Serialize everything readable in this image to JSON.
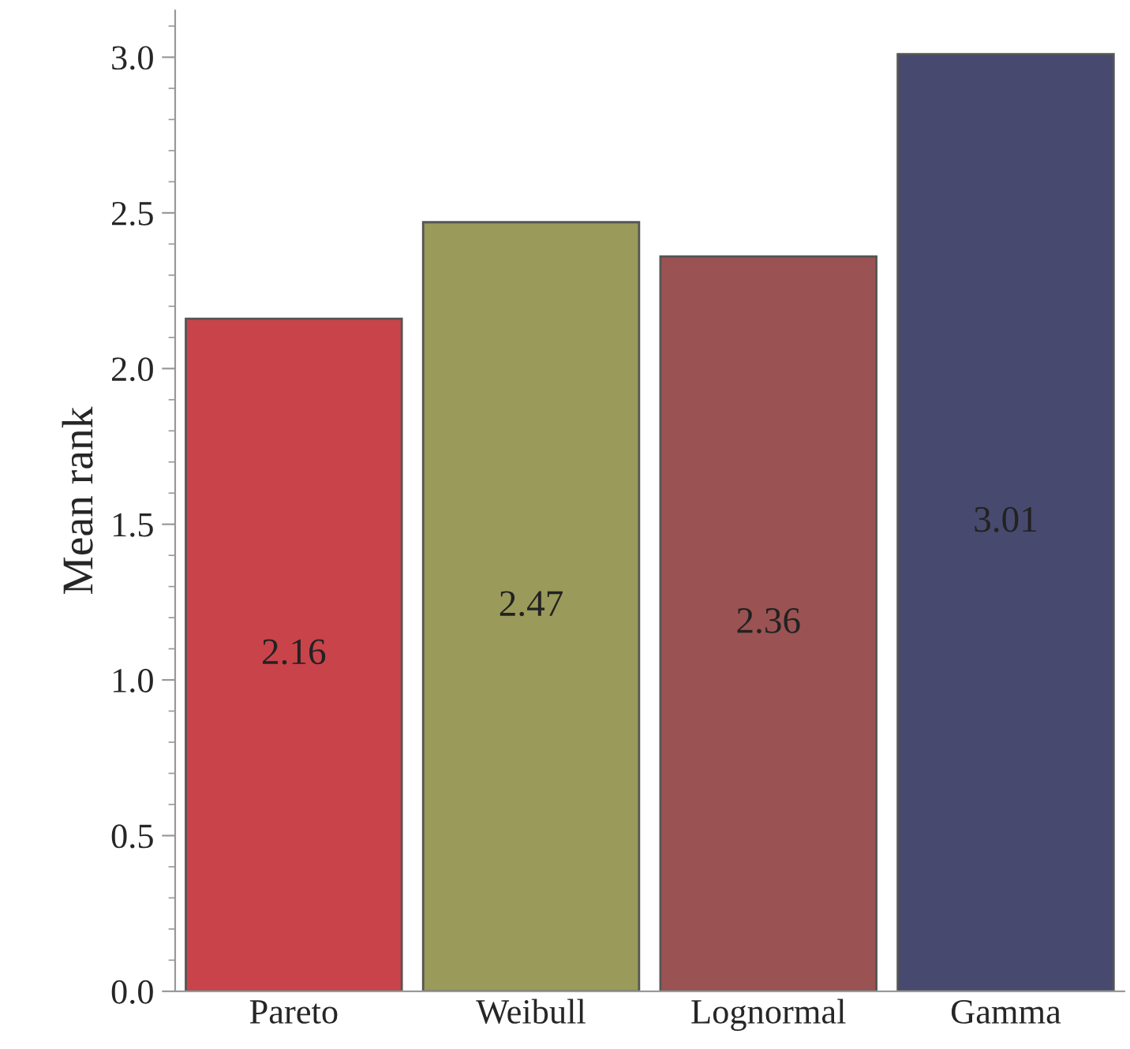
{
  "chart_data": {
    "type": "bar",
    "ylabel": "Mean rank",
    "categories": [
      "Pareto",
      "Weibull",
      "Lognormal",
      "Gamma"
    ],
    "values": [
      2.16,
      2.47,
      2.36,
      3.01
    ],
    "colors": [
      "#c9434a",
      "#9a9a5a",
      "#9a5252",
      "#474a6e"
    ],
    "ylim": [
      0,
      3.15
    ],
    "yticks": [
      {
        "value": 0,
        "label": "0.0"
      },
      0.5,
      {
        "value": 1,
        "label": "1.0"
      },
      1.5,
      {
        "value": 2,
        "label": "2.0"
      },
      2.5,
      {
        "value": 3,
        "label": "3.0"
      }
    ],
    "data_labels": true,
    "grid": false,
    "legend": false
  }
}
